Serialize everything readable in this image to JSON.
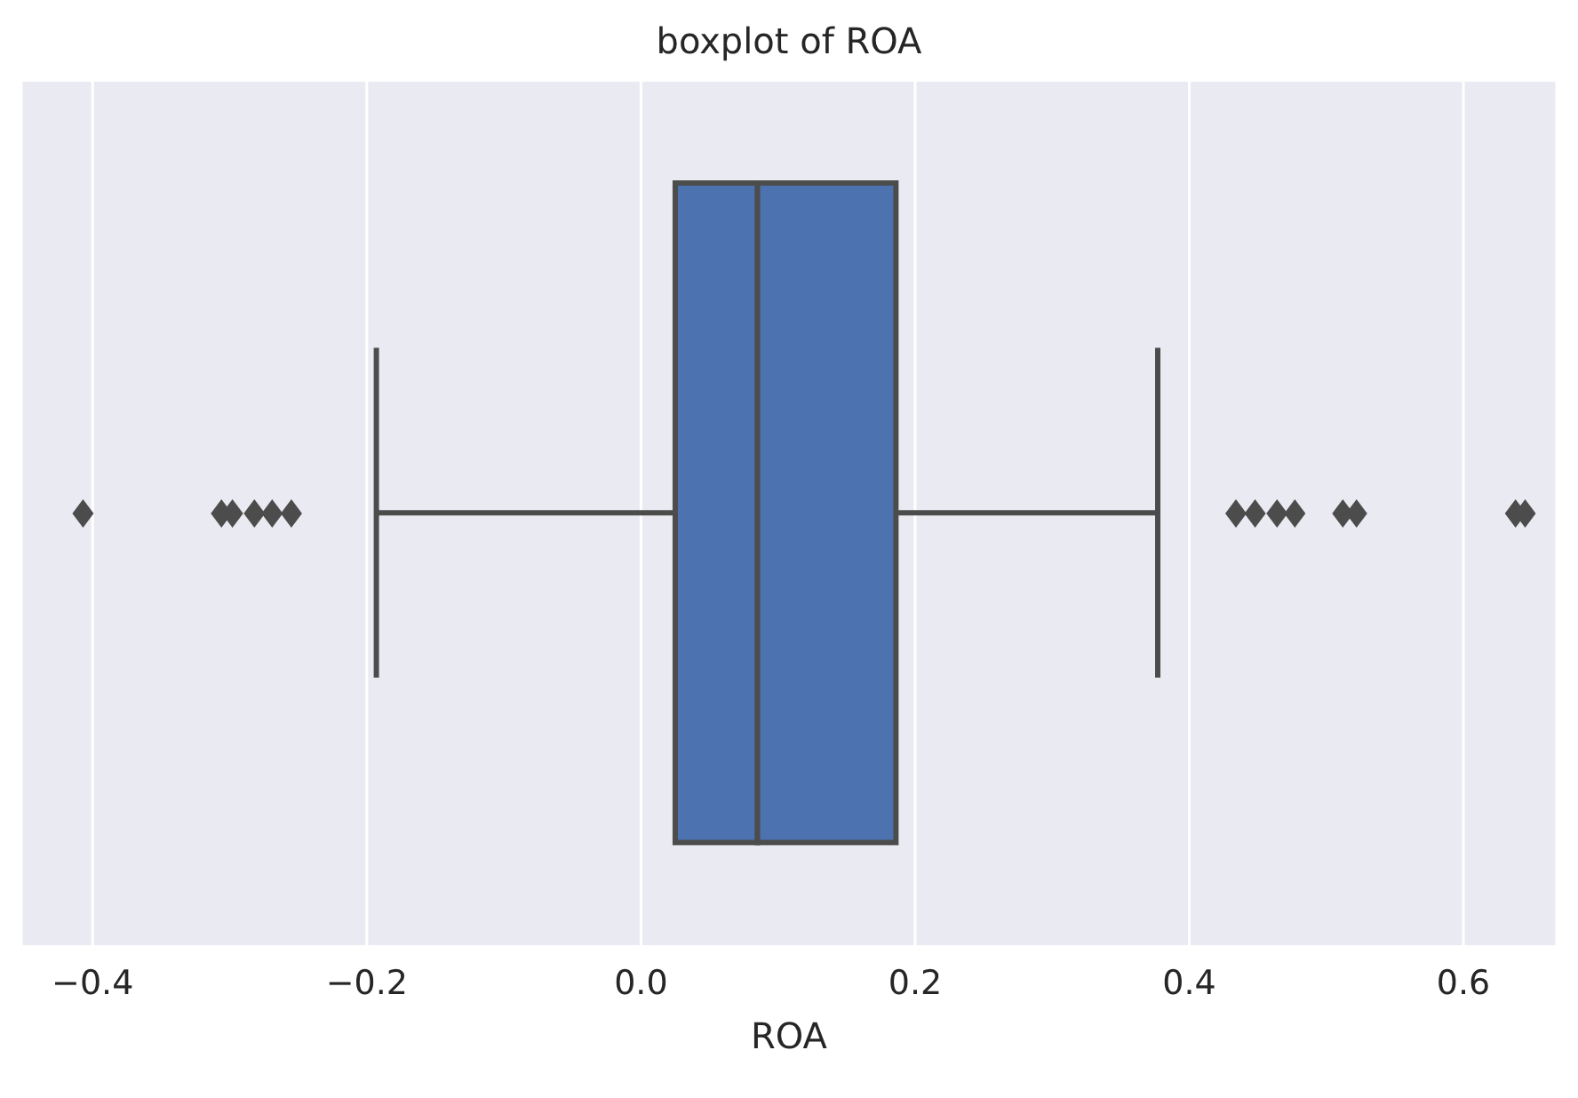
{
  "chart_data": {
    "type": "box",
    "title": "boxplot of ROA",
    "xlabel": "ROA",
    "orientation": "horizontal",
    "categories": [
      null
    ],
    "color": "#4c72b0",
    "grid": "x",
    "xlim": [
      -0.452,
      0.668
    ],
    "xticks": [
      {
        "value": -0.4,
        "label": "−0.4"
      },
      {
        "value": -0.2,
        "label": "−0.2"
      },
      {
        "value": 0,
        "label": "0.0"
      },
      {
        "value": 0.2,
        "label": "0.2"
      },
      {
        "value": 0.4,
        "label": "0.4"
      },
      {
        "value": 0.6,
        "label": "0.6"
      }
    ],
    "boxes": [
      {
        "low": -0.193,
        "q1": 0.025,
        "median": 0.085,
        "q3": 0.186,
        "high": 0.377,
        "outliers": [
          -0.407,
          -0.306,
          -0.298,
          -0.282,
          -0.269,
          -0.255,
          0.434,
          0.448,
          0.464,
          0.477,
          0.512,
          0.522,
          0.638,
          0.645
        ]
      }
    ]
  }
}
